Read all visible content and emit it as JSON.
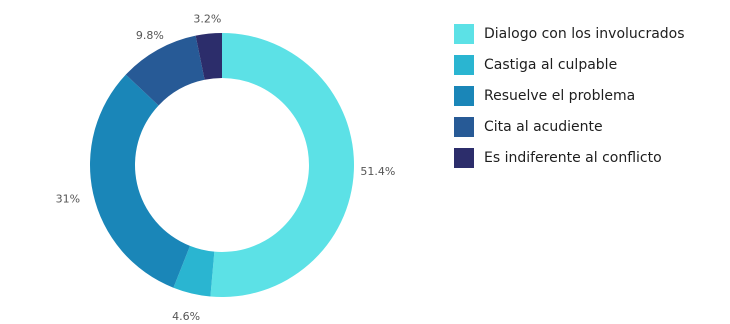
{
  "chart_data": {
    "type": "pie",
    "donut": true,
    "legend_position": "right",
    "slices": [
      {
        "label": "Dialogo con los involucrados",
        "value": 51.4,
        "value_label": "51.4%",
        "color": "#5ce1e6"
      },
      {
        "label": "Castiga al culpable",
        "value": 4.6,
        "value_label": "4.6%",
        "color": "#2ab5d1"
      },
      {
        "label": "Resuelve el problema",
        "value": 31,
        "value_label": "31%",
        "color": "#1a86b8"
      },
      {
        "label": "Cita al acudiente",
        "value": 9.8,
        "value_label": "9.8%",
        "color": "#275a96"
      },
      {
        "label": "Es indiferente al conflicto",
        "value": 3.2,
        "value_label": "3.2%",
        "color": "#2c2d6b"
      }
    ]
  }
}
